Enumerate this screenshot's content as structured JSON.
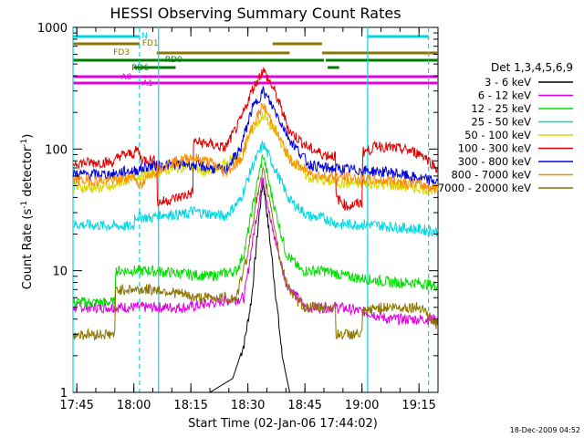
{
  "chart_data": {
    "type": "line",
    "title": "HESSI Observing Summary Count Rates",
    "xlabel": "Start Time (02-Jan-06 17:44:02)",
    "ylabel_main": "Count Rate (s",
    "ylabel_sup1": "-1",
    "ylabel_mid": " detector",
    "ylabel_sup2": "-1",
    "ylabel_end": ")",
    "footer": "18-Dec-2009 04:52",
    "yscale": "log",
    "ylim": [
      1,
      1000
    ],
    "xlim_minutes": [
      0,
      96
    ],
    "x_ticks": [
      {
        "m": 1,
        "label": "17:45"
      },
      {
        "m": 16,
        "label": "18:00"
      },
      {
        "m": 31,
        "label": "18:15"
      },
      {
        "m": 46,
        "label": "18:30"
      },
      {
        "m": 61,
        "label": "18:45"
      },
      {
        "m": 76,
        "label": "19:00"
      },
      {
        "m": 91,
        "label": "19:15"
      }
    ],
    "y_ticks": [
      {
        "v": 1,
        "label": "1"
      },
      {
        "v": 10,
        "label": "10"
      },
      {
        "v": 100,
        "label": "100"
      },
      {
        "v": 1000,
        "label": "1000"
      }
    ],
    "legend_title": "Det 1,3,4,5,6,9",
    "legend_position": "right",
    "series": [
      {
        "name": "3 - 6 keV",
        "color": "#000000",
        "points": [
          [
            0,
            1
          ],
          [
            14,
            1
          ],
          [
            16,
            1
          ],
          [
            20,
            1
          ],
          [
            28,
            1
          ],
          [
            36,
            1
          ],
          [
            42,
            1.3
          ],
          [
            45,
            2.5
          ],
          [
            47,
            6
          ],
          [
            49,
            30
          ],
          [
            50,
            55
          ],
          [
            51,
            30
          ],
          [
            53,
            8
          ],
          [
            55,
            2
          ],
          [
            57,
            1
          ],
          [
            60,
            1
          ],
          [
            66,
            1
          ],
          [
            72,
            1
          ],
          [
            78,
            1
          ],
          [
            84,
            1
          ],
          [
            90,
            1
          ],
          [
            96,
            1
          ]
        ]
      },
      {
        "name": "6 - 12 keV",
        "color": "#e000e0",
        "points": [
          [
            0,
            5
          ],
          [
            16,
            5
          ],
          [
            30,
            5
          ],
          [
            45,
            6
          ],
          [
            48,
            25
          ],
          [
            50,
            60
          ],
          [
            52,
            25
          ],
          [
            56,
            8
          ],
          [
            61,
            5
          ],
          [
            70,
            5
          ],
          [
            78,
            4.5
          ],
          [
            83,
            4
          ],
          [
            96,
            4
          ]
        ]
      },
      {
        "name": "12 - 25 keV",
        "color": "#00e000",
        "points": [
          [
            0,
            5.5
          ],
          [
            11,
            5.5
          ],
          [
            11.2,
            10
          ],
          [
            20,
            10
          ],
          [
            28,
            9.5
          ],
          [
            36,
            9
          ],
          [
            43,
            10
          ],
          [
            45,
            14
          ],
          [
            48,
            45
          ],
          [
            50,
            90
          ],
          [
            52,
            45
          ],
          [
            56,
            14
          ],
          [
            60,
            10
          ],
          [
            66,
            10
          ],
          [
            72,
            9
          ],
          [
            78,
            8.5
          ],
          [
            84,
            8
          ],
          [
            90,
            8
          ],
          [
            96,
            7.5
          ]
        ]
      },
      {
        "name": "25 - 50 keV",
        "color": "#00d8e0",
        "points": [
          [
            0,
            24
          ],
          [
            16,
            23
          ],
          [
            16.2,
            28
          ],
          [
            21,
            27
          ],
          [
            22,
            29
          ],
          [
            25,
            29
          ],
          [
            30,
            29
          ],
          [
            31,
            31
          ],
          [
            40,
            28
          ],
          [
            44,
            38
          ],
          [
            47,
            70
          ],
          [
            50,
            110
          ],
          [
            53,
            70
          ],
          [
            57,
            38
          ],
          [
            62,
            28
          ],
          [
            66,
            27
          ],
          [
            70,
            24
          ],
          [
            78,
            24
          ],
          [
            84,
            23
          ],
          [
            90,
            22
          ],
          [
            96,
            21
          ]
        ]
      },
      {
        "name": "50 - 100 keV",
        "color": "#d8d800",
        "points": [
          [
            0,
            48
          ],
          [
            11,
            48
          ],
          [
            11.2,
            52
          ],
          [
            16,
            58
          ],
          [
            20,
            62
          ],
          [
            25,
            68
          ],
          [
            30,
            72
          ],
          [
            36,
            64
          ],
          [
            44,
            90
          ],
          [
            47,
            140
          ],
          [
            50,
            190
          ],
          [
            53,
            140
          ],
          [
            57,
            85
          ],
          [
            62,
            58
          ],
          [
            66,
            55
          ],
          [
            72,
            52
          ],
          [
            78,
            52
          ],
          [
            84,
            50
          ],
          [
            90,
            48
          ],
          [
            96,
            46
          ]
        ]
      },
      {
        "name": "100 - 300 keV",
        "color": "#e00000",
        "points": [
          [
            0,
            77
          ],
          [
            11,
            78
          ],
          [
            12,
            88
          ],
          [
            16,
            92
          ],
          [
            17,
            100
          ],
          [
            18,
            82
          ],
          [
            20,
            82
          ],
          [
            22,
            80
          ],
          [
            22.2,
            36
          ],
          [
            25,
            38
          ],
          [
            30,
            42
          ],
          [
            31.5,
            44
          ],
          [
            31.7,
            115
          ],
          [
            36,
            110
          ],
          [
            40,
            102
          ],
          [
            44,
            170
          ],
          [
            47,
            300
          ],
          [
            50,
            450
          ],
          [
            53,
            300
          ],
          [
            57,
            140
          ],
          [
            62,
            102
          ],
          [
            66,
            90
          ],
          [
            69,
            88
          ],
          [
            69.2,
            40
          ],
          [
            72,
            34
          ],
          [
            76,
            36
          ],
          [
            76.2,
            95
          ],
          [
            78,
            98
          ],
          [
            80,
            108
          ],
          [
            82,
            104
          ],
          [
            88,
            98
          ],
          [
            92,
            90
          ],
          [
            96,
            68
          ]
        ]
      },
      {
        "name": "300 - 800 keV",
        "color": "#0000e0",
        "points": [
          [
            0,
            62
          ],
          [
            11,
            62
          ],
          [
            13,
            65
          ],
          [
            16,
            66
          ],
          [
            20,
            72
          ],
          [
            25,
            74
          ],
          [
            30,
            76
          ],
          [
            36,
            70
          ],
          [
            40,
            66
          ],
          [
            44,
            100
          ],
          [
            47,
            210
          ],
          [
            50,
            300
          ],
          [
            53,
            210
          ],
          [
            57,
            120
          ],
          [
            62,
            75
          ],
          [
            66,
            70
          ],
          [
            72,
            68
          ],
          [
            78,
            66
          ],
          [
            84,
            64
          ],
          [
            90,
            58
          ],
          [
            96,
            54
          ]
        ]
      },
      {
        "name": "800 - 7000 keV",
        "color": "#ff8c00",
        "points": [
          [
            0,
            55
          ],
          [
            11,
            55
          ],
          [
            16,
            60
          ],
          [
            18,
            48
          ],
          [
            20,
            62
          ],
          [
            25,
            76
          ],
          [
            28,
            80
          ],
          [
            31,
            86
          ],
          [
            36,
            78
          ],
          [
            40,
            64
          ],
          [
            44,
            80
          ],
          [
            47,
            150
          ],
          [
            50,
            230
          ],
          [
            53,
            150
          ],
          [
            57,
            82
          ],
          [
            62,
            64
          ],
          [
            66,
            60
          ],
          [
            72,
            58
          ],
          [
            78,
            56
          ],
          [
            84,
            55
          ],
          [
            90,
            52
          ],
          [
            96,
            47
          ]
        ]
      },
      {
        "name": "7000 - 20000 keV",
        "color": "#8b7500",
        "points": [
          [
            0,
            3
          ],
          [
            5,
            3
          ],
          [
            11,
            3
          ],
          [
            11.2,
            7
          ],
          [
            16,
            7
          ],
          [
            22,
            7
          ],
          [
            28,
            6.5
          ],
          [
            32,
            6
          ],
          [
            36,
            6
          ],
          [
            40,
            6
          ],
          [
            43,
            6
          ],
          [
            44,
            8
          ],
          [
            46,
            14
          ],
          [
            48,
            35
          ],
          [
            50,
            65
          ],
          [
            52,
            35
          ],
          [
            55,
            10
          ],
          [
            58,
            6
          ],
          [
            61,
            5
          ],
          [
            66,
            5
          ],
          [
            69,
            5
          ],
          [
            69.2,
            3
          ],
          [
            72,
            3
          ],
          [
            76,
            3
          ],
          [
            76.2,
            4.5
          ],
          [
            80,
            5
          ],
          [
            84,
            5
          ],
          [
            88,
            5
          ],
          [
            92,
            5
          ],
          [
            94,
            4
          ],
          [
            96,
            3.5
          ]
        ]
      }
    ],
    "vlines": [
      {
        "m": 0,
        "style": "solid"
      },
      {
        "m": 17.5,
        "style": "dashed"
      },
      {
        "m": 22.5,
        "style": "solid"
      },
      {
        "m": 77.5,
        "style": "solid"
      },
      {
        "m": 93.5,
        "style": "dashed"
      }
    ],
    "flag_bars": [
      {
        "name": "N",
        "color": "#00d8e0",
        "y": 40,
        "segments": [
          [
            0,
            17.5
          ],
          [
            77.5,
            93.5
          ]
        ]
      },
      {
        "name": "FD1",
        "color": "#8b7500",
        "y": 48,
        "segments": [
          [
            0,
            17.5
          ],
          [
            52.5,
            65.5
          ]
        ]
      },
      {
        "name": "FD3",
        "color": "#8b7500",
        "y": 58,
        "segments": [
          [
            22,
            57
          ],
          [
            65.5,
            96
          ]
        ]
      },
      {
        "name": "RD0",
        "color": "#007d00",
        "y": 66,
        "segments": [
          [
            0,
            48
          ],
          [
            48,
            66
          ],
          [
            66.5,
            96
          ]
        ]
      },
      {
        "name": "RD6",
        "color": "#007d00",
        "y": 74,
        "segments": [
          [
            16,
            27
          ],
          [
            67,
            70
          ]
        ]
      },
      {
        "name": "A0",
        "color": "#e000e0",
        "y": 84,
        "segments": [
          [
            0,
            96
          ]
        ]
      },
      {
        "name": "A1",
        "color": "#e000e0",
        "y": 91,
        "segments": [
          [
            0,
            65.5
          ],
          [
            65.5,
            96
          ]
        ]
      }
    ],
    "flag_labels": [
      {
        "text": "N",
        "color": "#00d8e0",
        "m": 18,
        "y": 42
      },
      {
        "text": "FD1",
        "color": "#8b7500",
        "m": 18.2,
        "y": 50
      },
      {
        "text": "FD3",
        "color": "#8b7500",
        "m": 10.6,
        "y": 60
      },
      {
        "text": "RD0",
        "color": "#007d00",
        "m": 24.2,
        "y": 68
      },
      {
        "text": "RD6",
        "color": "#007d00",
        "m": 15.4,
        "y": 77
      },
      {
        "text": "A0",
        "color": "#e000e0",
        "m": 12.6,
        "y": 87
      },
      {
        "text": "A1",
        "color": "#e000e0",
        "m": 18.2,
        "y": 94
      }
    ]
  }
}
